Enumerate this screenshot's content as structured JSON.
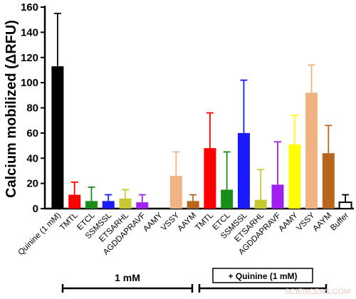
{
  "chart_data": {
    "type": "bar",
    "ylabel": "Calcium mobilized (ΔRFU)",
    "xlabel": "",
    "ylim": [
      0,
      160
    ],
    "yticks": [
      0,
      20,
      40,
      60,
      80,
      100,
      120,
      140,
      160
    ],
    "categories": [
      "Quinine (1 mM)",
      "TMTL",
      "ETCL",
      "SSMSSL",
      "ETSARHL",
      "AGDDAPRAVF",
      "AAMY",
      "VSSY",
      "AAYM",
      "TMTL",
      "ETCL",
      "SSMSSL",
      "ETSARHL",
      "AGDDAPRAVF",
      "AAMY",
      "VSSY",
      "AAYM",
      "Buffer"
    ],
    "values": [
      113,
      11,
      6,
      6,
      8,
      5,
      0,
      26,
      6,
      48,
      15,
      60,
      7,
      19,
      51,
      92,
      44,
      5
    ],
    "errors": [
      42,
      10,
      11,
      5,
      7,
      6,
      0,
      19,
      5,
      28,
      30,
      42,
      24,
      34,
      23,
      22,
      22,
      6
    ],
    "colors": [
      "#000000",
      "#ff0000",
      "#1a8c1a",
      "#1a1aff",
      "#c8c832",
      "#a020f0",
      "#ffff00",
      "#f0b482",
      "#b8651e",
      "#ff0000",
      "#1a8c1a",
      "#1a1aff",
      "#c8c832",
      "#a020f0",
      "#ffff00",
      "#f0b482",
      "#b8651e",
      "#ffffff"
    ],
    "groups": [
      {
        "label": "1 mM",
        "from": 1,
        "to": 8
      },
      {
        "label": "+ Quinine (1 mM)",
        "from": 9,
        "to": 16
      }
    ],
    "legend": "none",
    "grid": false
  },
  "watermark": "SCIENCEAS.COM"
}
